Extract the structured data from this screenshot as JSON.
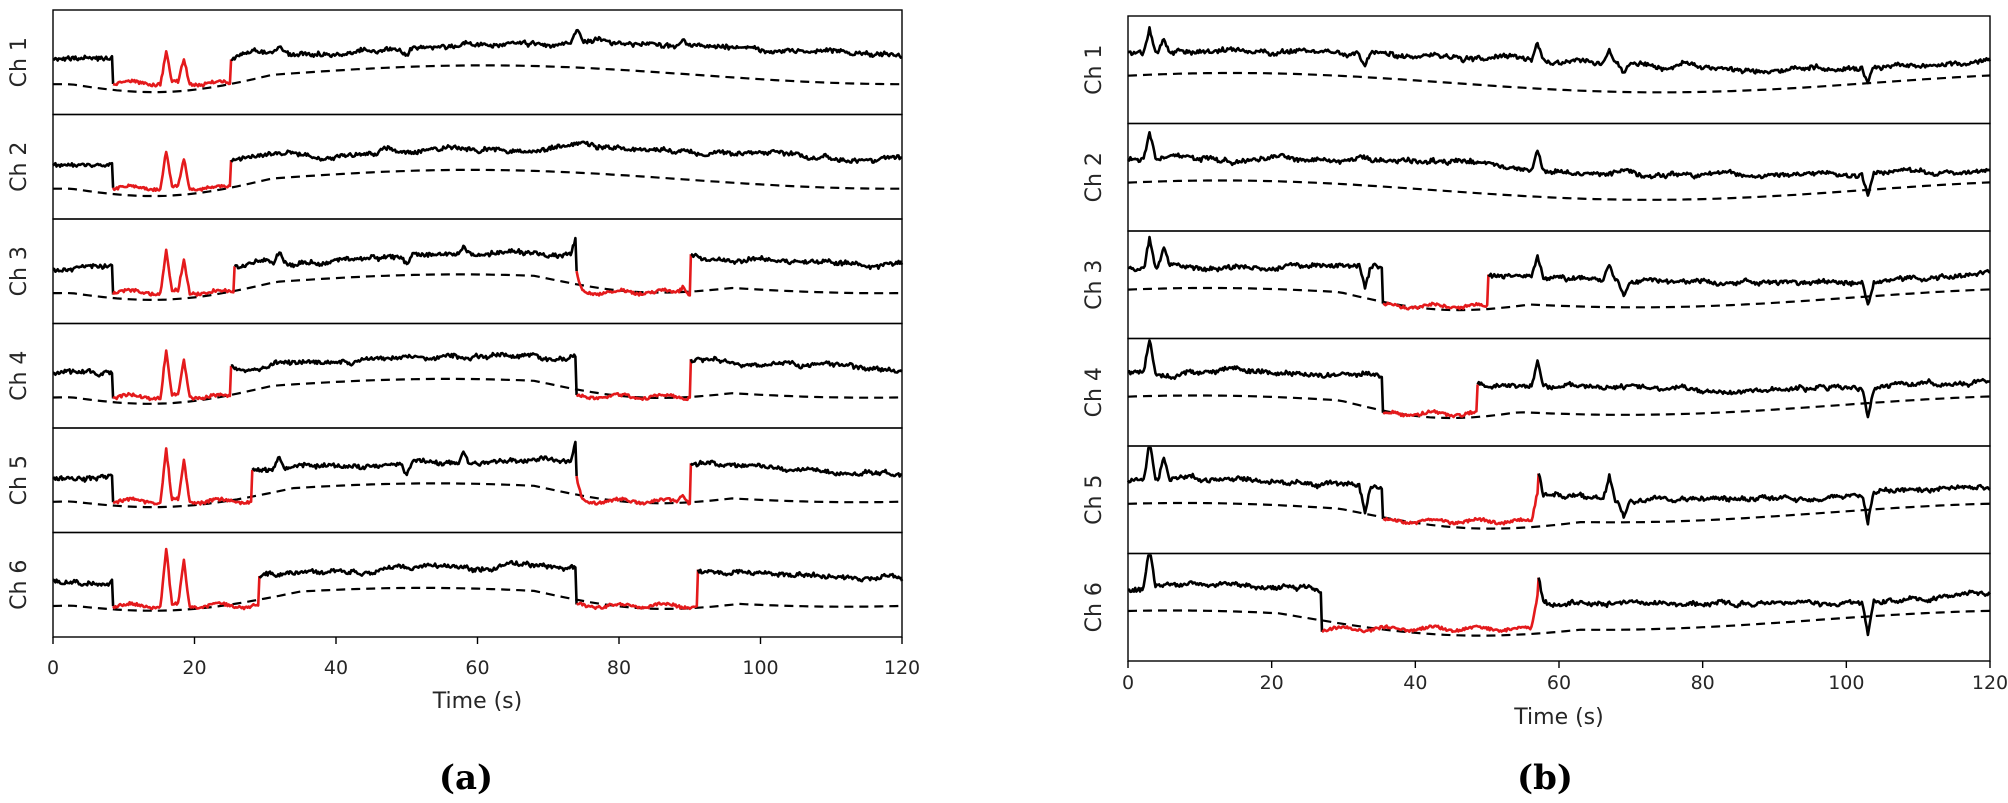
{
  "figure": {
    "colors": {
      "signal": "#000000",
      "highlight": "#e41a1c",
      "baseline": "#000000"
    }
  },
  "chart_data": [
    {
      "type": "line",
      "panel_label": "(a)",
      "xlabel": "Time (s)",
      "xlim": [
        0,
        120
      ],
      "xticks": [
        "0",
        "20",
        "40",
        "60",
        "80",
        "100",
        "120"
      ],
      "channels": [
        "Ch 1",
        "Ch 2",
        "Ch 3",
        "Ch 4",
        "Ch 5",
        "Ch 6"
      ],
      "highlighted_intervals": [
        {
          "channel": "Ch 1",
          "start": 8.5,
          "end": 25
        },
        {
          "channel": "Ch 2",
          "start": 8.5,
          "end": 25
        },
        {
          "channel": "Ch 3",
          "start": 8.5,
          "end": 25.5
        },
        {
          "channel": "Ch 3",
          "start": 74,
          "end": 90
        },
        {
          "channel": "Ch 4",
          "start": 8.5,
          "end": 25
        },
        {
          "channel": "Ch 4",
          "start": 74,
          "end": 90
        },
        {
          "channel": "Ch 5",
          "start": 8.5,
          "end": 28
        },
        {
          "channel": "Ch 5",
          "start": 74,
          "end": 90
        },
        {
          "channel": "Ch 6",
          "start": 8.5,
          "end": 29
        },
        {
          "channel": "Ch 6",
          "start": 74,
          "end": 91
        }
      ]
    },
    {
      "type": "line",
      "panel_label": "(b)",
      "xlabel": "Time (s)",
      "xlim": [
        0,
        120
      ],
      "xticks": [
        "0",
        "20",
        "40",
        "60",
        "80",
        "100",
        "120"
      ],
      "channels": [
        "Ch 1",
        "Ch 2",
        "Ch 3",
        "Ch 4",
        "Ch 5",
        "Ch 6"
      ],
      "highlighted_intervals": [
        {
          "channel": "Ch 3",
          "start": 35.5,
          "end": 50
        },
        {
          "channel": "Ch 4",
          "start": 35.5,
          "end": 48.5
        },
        {
          "channel": "Ch 5",
          "start": 35.5,
          "end": 57
        },
        {
          "channel": "Ch 6",
          "start": 27,
          "end": 57
        }
      ]
    }
  ]
}
